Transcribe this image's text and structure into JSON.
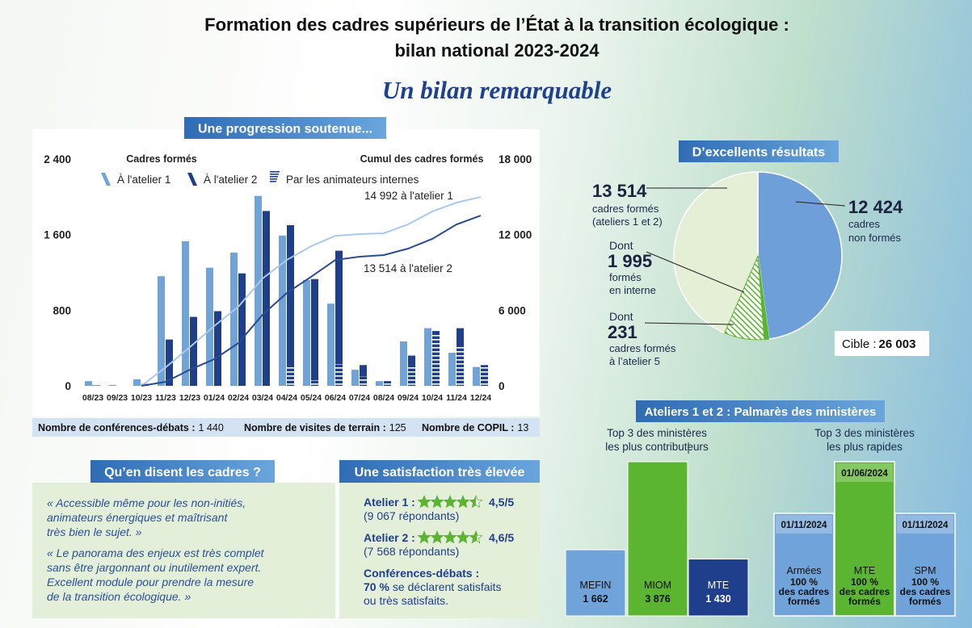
{
  "title": [
    "Formation des cadres supérieurs de l’État à la transition écologique :",
    "bilan national 2023-2024"
  ],
  "subtitle": "Un bilan remarquable",
  "chart_data": [
    {
      "type": "bar_line",
      "title": "Une progression soutenue...",
      "y_label": "Cadres formés",
      "y2_label": "Cumul des cadres formés",
      "categories": [
        "08/23",
        "09/23",
        "10/23",
        "11/23",
        "12/23",
        "01/24",
        "02/24",
        "03/24",
        "04/24",
        "05/24",
        "06/24",
        "07/24",
        "08/24",
        "09/24",
        "10/24",
        "11/24",
        "12/24"
      ],
      "series": [
        {
          "name": "À l'atelier 1",
          "color": "#6fa3d9",
          "values": [
            50,
            10,
            70,
            1160,
            1530,
            1250,
            1410,
            2010,
            1590,
            1120,
            870,
            170,
            50,
            470,
            610,
            350,
            200
          ]
        },
        {
          "name": "À l'atelier 2",
          "color": "#1f3e8c",
          "values": [
            5,
            0,
            20,
            490,
            730,
            790,
            1190,
            1850,
            1700,
            1130,
            1430,
            220,
            50,
            320,
            580,
            610,
            220
          ]
        },
        {
          "name": "Par les animateurs internes",
          "color": "#1f3e8c",
          "pattern": "hatch",
          "values": [
            0,
            0,
            0,
            0,
            0,
            0,
            0,
            0,
            200,
            60,
            230,
            100,
            30,
            200,
            550,
            430,
            200
          ]
        },
        {
          "name": "14 992 à l'atelier 1",
          "color": "#a9c9ec",
          "type": "line",
          "axis": "y2",
          "values": [
            null,
            null,
            0,
            1470,
            3070,
            4740,
            6280,
            8520,
            9990,
            11080,
            11910,
            12040,
            12110,
            12810,
            13840,
            14540,
            14992
          ]
        },
        {
          "name": "13 514 à l'atelier 2",
          "color": "#2a4a94",
          "type": "line",
          "axis": "y2",
          "values": [
            null,
            null,
            0,
            320,
            1280,
            2110,
            3390,
            5640,
            7370,
            8650,
            9990,
            10250,
            10380,
            10890,
            11660,
            12810,
            13514
          ]
        }
      ],
      "ylim": [
        0,
        2400
      ],
      "yticks": [
        0,
        800,
        {
          "value": 1600,
          "label": "1 600"
        },
        {
          "value": 2400,
          "label": "2 400"
        }
      ],
      "y2lim": [
        0,
        18000
      ],
      "y2ticks": [
        0,
        {
          "value": 6000,
          "label": "6 000"
        },
        {
          "value": 12000,
          "label": "12 000"
        },
        {
          "value": 18000,
          "label": "18 000"
        }
      ]
    },
    {
      "type": "pie",
      "title": "D’excellents résultats",
      "categories": [
        [
          "cadres",
          "non formés"
        ],
        [
          "cadres formés",
          "(ateliers 1 et 2)"
        ]
      ],
      "values": [
        12424,
        13514
      ],
      "value_labels": [
        "12 424",
        "13 514"
      ],
      "colors": [
        "#6f9fd8",
        "#e4efd6"
      ],
      "subsets": [
        {
          "prefix": "Dont",
          "value": 231,
          "value_label": "231",
          "label": [
            "cadres formés",
            "à l’atelier 5"
          ],
          "color": "#5cb531"
        },
        {
          "prefix": "Dont",
          "value": 1995,
          "value_label": "1 995",
          "label": [
            "formés",
            "en interne"
          ],
          "color": "#5cb531",
          "pattern": "hatch"
        }
      ],
      "target": {
        "label": "Cible :",
        "value": 26003,
        "value_label": "26 003"
      }
    },
    {
      "type": "bar",
      "title": [
        "Top 3 des ministères",
        "les plus contributeurs"
      ],
      "categories": [
        "MEFIN",
        "MIOM",
        "MTE"
      ],
      "values": [
        1662,
        3876,
        1430
      ],
      "value_labels": [
        "1 662",
        "3 876",
        "1 430"
      ],
      "colors": [
        "#6fa3d9",
        "#5cb531",
        "#1f3e8c"
      ]
    }
  ],
  "stats": [
    {
      "label": "Nombre de conférences-débats :",
      "value": "1 440"
    },
    {
      "label": "Nombre de visites de terrain :",
      "value": "125"
    },
    {
      "label": "Nombre de COPIL :",
      "value": "13"
    }
  ],
  "quotes": {
    "title": "Qu’en disent les cadres ?",
    "items": [
      [
        "« Accessible même pour les non-initiés,",
        "animateurs énergiques et maîtrisant",
        "très bien le sujet. »"
      ],
      [
        "« Le panorama des enjeux est très complet",
        "sans être jargonnant ou inutilement expert.",
        "Excellent module pour prendre la mesure",
        "de la transition écologique. »"
      ]
    ]
  },
  "satisfaction": {
    "title": "Une satisfaction très élevée",
    "ratings": [
      {
        "label": "Atelier 1 :",
        "value": 4.5,
        "value_label": "4,5/5",
        "note": "(9 067 répondants)"
      },
      {
        "label": "Atelier 2 :",
        "value": 4.6,
        "value_label": "4,6/5",
        "note": "(7 568 répondants)"
      }
    ],
    "conferences": {
      "label": "Conférences-débats :",
      "highlight": "70 %",
      "rest": "se déclarent satisfaits",
      "line2": "ou très satisfaits."
    }
  },
  "ranking": {
    "title": "Ateliers 1 et 2 : Palmarès des ministères",
    "fastest": {
      "title": [
        "Top 3 des ministères",
        "les plus rapides"
      ],
      "items": [
        {
          "date": "01/11/2024",
          "name": "Armées",
          "lines": [
            "100 %",
            "des cadres",
            "formés"
          ],
          "color": "#6fa3d9"
        },
        {
          "date": "01/06/2024",
          "name": "MTE",
          "lines": [
            "100 %",
            "des cadres",
            "formés"
          ],
          "color": "#5cb531"
        },
        {
          "date": "01/11/2024",
          "name": "SPM",
          "lines": [
            "100 %",
            "des cadres",
            "formés"
          ],
          "color": "#6fa3d9"
        }
      ]
    }
  }
}
